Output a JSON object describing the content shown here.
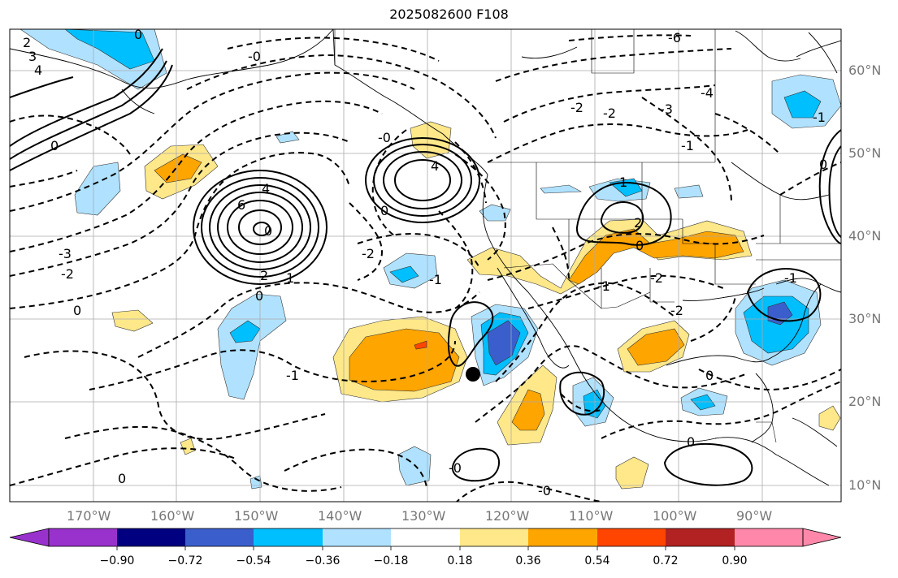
{
  "title": "2025082600 F108",
  "lat_labels": [
    "60°N",
    "50°N",
    "40°N",
    "30°N",
    "20°N",
    "10°N"
  ],
  "lon_labels": [
    "170°W",
    "160°W",
    "150°W",
    "140°W",
    "130°W",
    "120°W",
    "110°W",
    "100°W",
    "90°W"
  ],
  "colorbar": {
    "labels": [
      "−0.90",
      "−0.72",
      "−0.54",
      "−0.36",
      "−0.18",
      "0.18",
      "0.36",
      "0.54",
      "0.72",
      "0.90"
    ],
    "colors": [
      "#9932cc",
      "#000080",
      "#3a5fcd",
      "#00bfff",
      "#b0e2ff",
      "#ffffff",
      "#ffe88a",
      "#ffa500",
      "#ff4500",
      "#b22222",
      "#ff88aa"
    ]
  },
  "contour_labels": [
    {
      "text": "2"
    },
    {
      "text": "3"
    },
    {
      "text": "4"
    },
    {
      "text": "0"
    },
    {
      "text": "0"
    },
    {
      "text": "6"
    },
    {
      "text": "4"
    },
    {
      "text": "0"
    },
    {
      "text": "2"
    },
    {
      "text": "1"
    },
    {
      "text": "0"
    },
    {
      "text": "-3"
    },
    {
      "text": "-2"
    },
    {
      "text": "0"
    },
    {
      "text": "-2"
    },
    {
      "text": "-1"
    },
    {
      "text": "-1"
    },
    {
      "text": "-0"
    },
    {
      "text": "0"
    },
    {
      "text": "-0"
    },
    {
      "text": "4"
    },
    {
      "text": "-2"
    },
    {
      "text": "-2"
    },
    {
      "text": "-3"
    },
    {
      "text": "-4"
    },
    {
      "text": "-6"
    },
    {
      "text": "-1"
    },
    {
      "text": "1"
    },
    {
      "text": "2"
    },
    {
      "text": "0"
    },
    {
      "text": "-1"
    },
    {
      "text": "-2"
    },
    {
      "text": "-2"
    },
    {
      "text": "0"
    },
    {
      "text": "0"
    },
    {
      "text": "-0"
    },
    {
      "text": "0"
    },
    {
      "text": "-1"
    },
    {
      "text": "-1"
    },
    {
      "text": "0"
    },
    {
      "text": "-0"
    }
  ],
  "storm_marker": "storm-position-dot"
}
